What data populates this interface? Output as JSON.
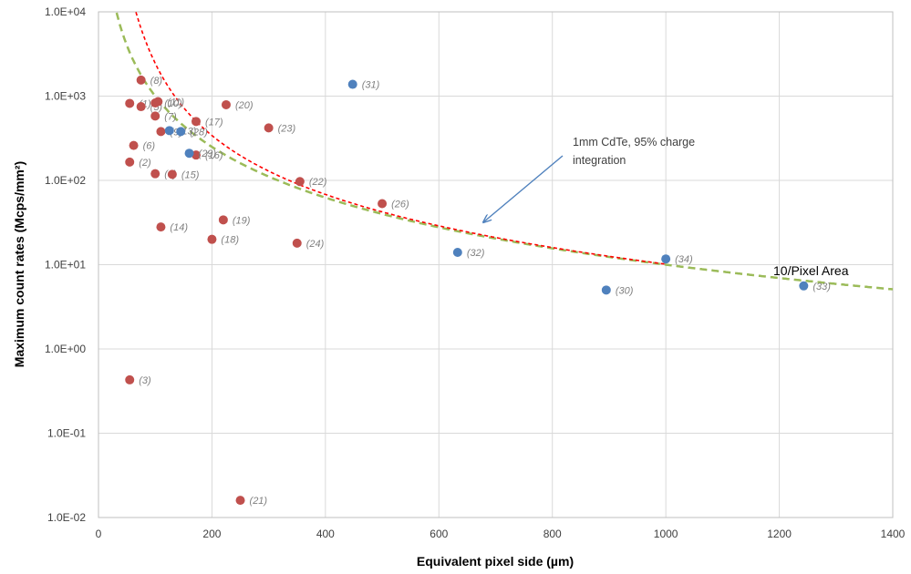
{
  "chart_data": {
    "type": "scatter",
    "xlabel": "Equivalent pixel side (µm)",
    "ylabel": "Maximum count rates (Mcps/mm²)",
    "xlim": [
      0,
      1400
    ],
    "ylim": [
      0.01,
      10000
    ],
    "yscale": "log",
    "grid": true,
    "x_ticks": [
      "0",
      "200",
      "400",
      "600",
      "800",
      "1000",
      "1200",
      "1400"
    ],
    "y_ticks": [
      "1.0E-02",
      "1.0E-01",
      "1.0E+00",
      "1.0E+01",
      "1.0E+02",
      "1.0E+03",
      "1.0E+04"
    ],
    "colors": {
      "red_points": "#c0504d",
      "blue_points": "#4f81bd",
      "green_curve": "#9bbb59",
      "red_curve": "#ff0000",
      "arrow": "#4f81bd",
      "grid": "#d9d9d9"
    },
    "series": [
      {
        "color": "red",
        "points": [
          {
            "x": 55,
            "y": 820,
            "label": "(1)"
          },
          {
            "x": 55,
            "y": 165,
            "label": "(2)"
          },
          {
            "x": 55,
            "y": 0.43,
            "label": "(3)"
          },
          {
            "x": 100,
            "y": 120,
            "label": "(4)"
          },
          {
            "x": 75,
            "y": 750,
            "label": "(5)"
          },
          {
            "x": 62,
            "y": 260,
            "label": "(6)"
          },
          {
            "x": 100,
            "y": 580,
            "label": "(7)"
          },
          {
            "x": 75,
            "y": 1550,
            "label": "(8)"
          },
          {
            "x": 110,
            "y": 380,
            "label": "(9)"
          },
          {
            "x": 100,
            "y": 830,
            "label": "(10)"
          },
          {
            "x": 105,
            "y": 860,
            "label": "(11)"
          },
          {
            "x": 130,
            "y": 118,
            "label": "(15)"
          },
          {
            "x": 110,
            "y": 28,
            "label": "(14)"
          },
          {
            "x": 172,
            "y": 200,
            "label": "(16)"
          },
          {
            "x": 172,
            "y": 500,
            "label": "(17)"
          },
          {
            "x": 200,
            "y": 20,
            "label": "(18)"
          },
          {
            "x": 220,
            "y": 34,
            "label": "(19)"
          },
          {
            "x": 225,
            "y": 790,
            "label": "(20)"
          },
          {
            "x": 250,
            "y": 0.016,
            "label": "(21)"
          },
          {
            "x": 355,
            "y": 97,
            "label": "(22)"
          },
          {
            "x": 300,
            "y": 420,
            "label": "(23)"
          },
          {
            "x": 350,
            "y": 18,
            "label": "(24)"
          },
          {
            "x": 500,
            "y": 53,
            "label": "(26)"
          }
        ]
      },
      {
        "color": "blue",
        "points": [
          {
            "x": 125,
            "y": 390,
            "label": "(13)"
          },
          {
            "x": 160,
            "y": 210,
            "label": "(29)"
          },
          {
            "x": 145,
            "y": 380,
            "label": "(28)"
          },
          {
            "x": 448,
            "y": 1380,
            "label": "(31)"
          },
          {
            "x": 633,
            "y": 14,
            "label": "(32)"
          },
          {
            "x": 895,
            "y": 5,
            "label": "(30)"
          },
          {
            "x": 1000,
            "y": 11.7,
            "label": "(34)"
          },
          {
            "x": 1243,
            "y": 5.6,
            "label": "(33)"
          }
        ]
      }
    ],
    "curves": [
      {
        "name": "10/Pixel Area",
        "color": "green",
        "style": "dashed",
        "formula": "1e7/x^2"
      },
      {
        "name": "1mm CdTe, 95% charge integration",
        "color": "red",
        "style": "dotted",
        "formula": "1e7/x^2 + 1.45e11/x^4"
      }
    ],
    "annotations": [
      {
        "text": "1mm CdTe, 95% charge",
        "text2": "integration"
      },
      {
        "text": "10/Pixel Area"
      }
    ]
  }
}
